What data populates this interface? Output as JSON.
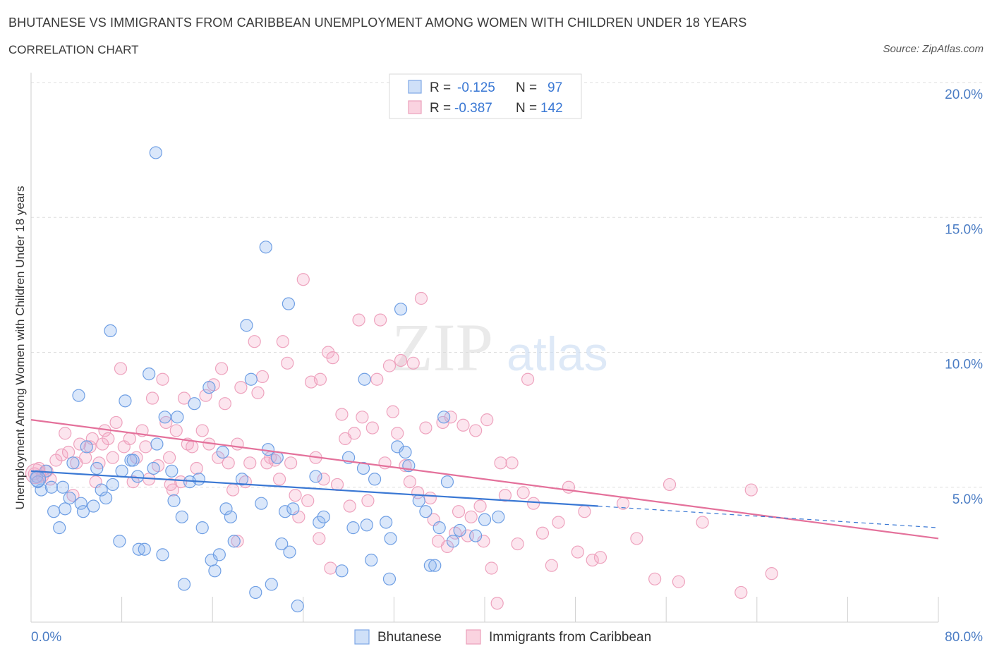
{
  "title": "BHUTANESE VS IMMIGRANTS FROM CARIBBEAN UNEMPLOYMENT AMONG WOMEN WITH CHILDREN UNDER 18 YEARS",
  "subtitle": "CORRELATION CHART",
  "source": "Source: ZipAtlas.com",
  "watermark": {
    "zip": "ZIP",
    "atlas": "atlas"
  },
  "colors": {
    "blue": "#6fa0e6",
    "blue_line": "#3a78d4",
    "pink": "#f0a6bf",
    "pink_line": "#e4719b",
    "tick_text": "#4a7cc4"
  },
  "legend_top": [
    {
      "r_label": "R =",
      "r_value": "-0.125",
      "n_label": "N =",
      "n_value": "97",
      "color": "blue"
    },
    {
      "r_label": "R =",
      "r_value": "-0.387",
      "n_label": "N =",
      "n_value": "142",
      "color": "pink"
    }
  ],
  "legend_bottom": [
    {
      "label": "Bhutanese",
      "color": "blue"
    },
    {
      "label": "Immigrants from Caribbean",
      "color": "pink"
    }
  ],
  "chart_data": {
    "type": "scatter",
    "ylabel": "Unemployment Among Women with Children Under 18 years",
    "xlim": [
      0,
      80
    ],
    "ylim": [
      0,
      20
    ],
    "x_tick_labels": [
      {
        "value": 0,
        "label": "0.0%"
      },
      {
        "value": 80,
        "label": "80.0%"
      }
    ],
    "y_tick_labels": [
      {
        "value": 5,
        "label": "5.0%"
      },
      {
        "value": 10,
        "label": "10.0%"
      },
      {
        "value": 15,
        "label": "15.0%"
      },
      {
        "value": 20,
        "label": "20.0%"
      }
    ],
    "series": [
      {
        "name": "Bhutanese",
        "color": "blue",
        "trend": {
          "x0": 0,
          "y0": 5.6,
          "x1": 50,
          "y1": 4.3,
          "dash_to_x": 80,
          "dash_to_y": 3.5
        },
        "points": [
          [
            0.5,
            5.4
          ],
          [
            0.9,
            4.9
          ],
          [
            1.3,
            5.6
          ],
          [
            1.8,
            5.0
          ],
          [
            0.6,
            5.2
          ],
          [
            2.0,
            4.1
          ],
          [
            2.5,
            3.5
          ],
          [
            2.8,
            5.0
          ],
          [
            3.0,
            4.2
          ],
          [
            3.4,
            4.6
          ],
          [
            3.7,
            5.9
          ],
          [
            4.2,
            8.4
          ],
          [
            4.4,
            4.4
          ],
          [
            4.6,
            4.1
          ],
          [
            4.9,
            6.5
          ],
          [
            5.5,
            4.3
          ],
          [
            5.8,
            5.7
          ],
          [
            6.2,
            4.9
          ],
          [
            6.6,
            4.6
          ],
          [
            7.0,
            10.8
          ],
          [
            7.2,
            5.1
          ],
          [
            7.8,
            3.0
          ],
          [
            8.3,
            8.2
          ],
          [
            8.8,
            6.0
          ],
          [
            9.0,
            6.0
          ],
          [
            9.4,
            5.4
          ],
          [
            9.5,
            2.7
          ],
          [
            10.0,
            2.7
          ],
          [
            10.4,
            9.2
          ],
          [
            10.8,
            5.7
          ],
          [
            11.1,
            6.6
          ],
          [
            11.0,
            17.4
          ],
          [
            11.6,
            2.5
          ],
          [
            11.8,
            7.6
          ],
          [
            12.4,
            5.6
          ],
          [
            12.6,
            4.5
          ],
          [
            12.9,
            7.6
          ],
          [
            13.3,
            3.9
          ],
          [
            13.5,
            1.4
          ],
          [
            14.0,
            5.2
          ],
          [
            14.4,
            8.1
          ],
          [
            14.8,
            5.3
          ],
          [
            15.1,
            3.5
          ],
          [
            15.7,
            8.7
          ],
          [
            15.9,
            2.3
          ],
          [
            16.2,
            1.9
          ],
          [
            16.6,
            2.5
          ],
          [
            16.9,
            6.3
          ],
          [
            17.2,
            4.2
          ],
          [
            17.6,
            3.9
          ],
          [
            17.9,
            3.0
          ],
          [
            18.6,
            5.3
          ],
          [
            19.0,
            11.0
          ],
          [
            19.4,
            9.0
          ],
          [
            19.8,
            1.1
          ],
          [
            20.3,
            4.4
          ],
          [
            20.7,
            13.9
          ],
          [
            20.9,
            6.4
          ],
          [
            21.2,
            1.4
          ],
          [
            21.7,
            6.1
          ],
          [
            22.1,
            2.9
          ],
          [
            22.4,
            4.1
          ],
          [
            22.7,
            11.8
          ],
          [
            22.8,
            2.6
          ],
          [
            23.1,
            4.2
          ],
          [
            23.5,
            0.6
          ],
          [
            25.1,
            5.4
          ],
          [
            25.4,
            3.7
          ],
          [
            25.8,
            3.9
          ],
          [
            27.4,
            1.9
          ],
          [
            28.0,
            6.1
          ],
          [
            28.4,
            3.5
          ],
          [
            29.3,
            5.7
          ],
          [
            29.6,
            3.6
          ],
          [
            30.0,
            2.3
          ],
          [
            30.3,
            5.3
          ],
          [
            31.3,
            3.7
          ],
          [
            31.6,
            1.6
          ],
          [
            32.3,
            6.5
          ],
          [
            32.6,
            11.6
          ],
          [
            33.0,
            6.3
          ],
          [
            33.3,
            5.8
          ],
          [
            34.2,
            4.5
          ],
          [
            34.8,
            4.1
          ],
          [
            35.2,
            2.1
          ],
          [
            35.6,
            2.1
          ],
          [
            36.0,
            3.5
          ],
          [
            36.4,
            7.6
          ],
          [
            36.7,
            5.2
          ],
          [
            37.2,
            3.0
          ],
          [
            37.8,
            3.4
          ],
          [
            39.2,
            3.2
          ],
          [
            40.0,
            3.8
          ],
          [
            41.2,
            3.9
          ],
          [
            31.7,
            3.1
          ],
          [
            29.4,
            9.0
          ],
          [
            8.0,
            5.6
          ]
        ]
      },
      {
        "name": "Immigrants from Caribbean",
        "color": "pink",
        "trend": {
          "x0": 0,
          "y0": 7.5,
          "x1": 80,
          "y1": 3.1
        },
        "points": [
          [
            0.3,
            5.5
          ],
          [
            0.7,
            5.7
          ],
          [
            1.0,
            5.4
          ],
          [
            1.4,
            5.6
          ],
          [
            1.7,
            5.3
          ],
          [
            2.2,
            6.0
          ],
          [
            2.7,
            6.2
          ],
          [
            3.0,
            7.0
          ],
          [
            3.3,
            6.3
          ],
          [
            3.7,
            4.7
          ],
          [
            4.0,
            5.9
          ],
          [
            4.3,
            6.6
          ],
          [
            4.8,
            6.1
          ],
          [
            5.2,
            6.5
          ],
          [
            5.4,
            6.8
          ],
          [
            5.7,
            5.2
          ],
          [
            6.0,
            5.9
          ],
          [
            6.3,
            6.6
          ],
          [
            6.5,
            7.1
          ],
          [
            6.8,
            6.8
          ],
          [
            7.2,
            6.1
          ],
          [
            7.5,
            7.4
          ],
          [
            7.9,
            9.4
          ],
          [
            8.2,
            6.5
          ],
          [
            8.7,
            6.8
          ],
          [
            9.0,
            5.2
          ],
          [
            9.3,
            6.1
          ],
          [
            9.8,
            7.1
          ],
          [
            10.1,
            6.5
          ],
          [
            10.4,
            5.3
          ],
          [
            10.7,
            8.3
          ],
          [
            11.2,
            5.8
          ],
          [
            11.6,
            9.0
          ],
          [
            11.9,
            7.4
          ],
          [
            12.2,
            6.1
          ],
          [
            12.5,
            4.9
          ],
          [
            12.8,
            7.1
          ],
          [
            13.2,
            5.2
          ],
          [
            13.5,
            8.3
          ],
          [
            13.8,
            6.6
          ],
          [
            14.2,
            6.5
          ],
          [
            14.6,
            5.7
          ],
          [
            15.1,
            7.1
          ],
          [
            15.4,
            8.4
          ],
          [
            15.7,
            6.6
          ],
          [
            16.1,
            8.8
          ],
          [
            16.5,
            6.1
          ],
          [
            16.8,
            9.4
          ],
          [
            17.1,
            8.1
          ],
          [
            17.4,
            5.9
          ],
          [
            17.8,
            4.9
          ],
          [
            18.2,
            6.6
          ],
          [
            18.5,
            8.7
          ],
          [
            18.9,
            5.2
          ],
          [
            19.3,
            5.9
          ],
          [
            19.7,
            10.4
          ],
          [
            20.0,
            8.5
          ],
          [
            20.4,
            9.1
          ],
          [
            20.8,
            5.9
          ],
          [
            21.1,
            6.1
          ],
          [
            21.5,
            6.0
          ],
          [
            21.9,
            5.3
          ],
          [
            22.2,
            10.4
          ],
          [
            22.6,
            9.6
          ],
          [
            22.9,
            5.9
          ],
          [
            23.3,
            4.7
          ],
          [
            23.6,
            3.9
          ],
          [
            24.0,
            12.7
          ],
          [
            24.4,
            4.5
          ],
          [
            24.7,
            8.9
          ],
          [
            25.1,
            6.1
          ],
          [
            25.5,
            9.0
          ],
          [
            25.8,
            5.3
          ],
          [
            26.2,
            10.0
          ],
          [
            26.6,
            9.8
          ],
          [
            27.0,
            5.1
          ],
          [
            27.4,
            7.7
          ],
          [
            27.7,
            6.8
          ],
          [
            28.1,
            4.3
          ],
          [
            28.5,
            7.0
          ],
          [
            28.9,
            11.2
          ],
          [
            29.2,
            7.6
          ],
          [
            29.7,
            4.5
          ],
          [
            30.1,
            7.2
          ],
          [
            30.5,
            9.0
          ],
          [
            30.8,
            11.2
          ],
          [
            31.2,
            5.9
          ],
          [
            31.6,
            9.5
          ],
          [
            31.9,
            7.8
          ],
          [
            32.3,
            7.0
          ],
          [
            32.6,
            9.7
          ],
          [
            33.0,
            5.8
          ],
          [
            33.4,
            5.2
          ],
          [
            33.7,
            9.6
          ],
          [
            34.1,
            4.8
          ],
          [
            34.4,
            12.0
          ],
          [
            34.8,
            7.2
          ],
          [
            35.2,
            4.6
          ],
          [
            35.5,
            3.8
          ],
          [
            35.9,
            3.0
          ],
          [
            36.3,
            7.4
          ],
          [
            36.7,
            2.8
          ],
          [
            37.0,
            7.6
          ],
          [
            37.4,
            3.3
          ],
          [
            37.7,
            4.1
          ],
          [
            38.1,
            7.3
          ],
          [
            38.5,
            3.2
          ],
          [
            38.8,
            3.9
          ],
          [
            39.2,
            7.1
          ],
          [
            39.6,
            4.3
          ],
          [
            39.9,
            3.0
          ],
          [
            40.2,
            7.5
          ],
          [
            40.6,
            2.0
          ],
          [
            41.1,
            0.7
          ],
          [
            41.4,
            5.9
          ],
          [
            41.8,
            4.7
          ],
          [
            42.4,
            5.9
          ],
          [
            42.9,
            2.9
          ],
          [
            43.4,
            4.8
          ],
          [
            43.8,
            9.0
          ],
          [
            44.3,
            4.4
          ],
          [
            45.1,
            3.3
          ],
          [
            45.9,
            2.1
          ],
          [
            46.5,
            3.7
          ],
          [
            47.4,
            5.0
          ],
          [
            48.2,
            2.6
          ],
          [
            48.8,
            4.1
          ],
          [
            49.5,
            2.3
          ],
          [
            50.2,
            2.4
          ],
          [
            52.2,
            4.4
          ],
          [
            53.4,
            3.1
          ],
          [
            55.0,
            1.6
          ],
          [
            56.3,
            5.1
          ],
          [
            57.1,
            1.5
          ],
          [
            59.2,
            3.7
          ],
          [
            62.6,
            1.1
          ],
          [
            63.5,
            4.9
          ],
          [
            65.3,
            1.8
          ],
          [
            26.4,
            2.0
          ],
          [
            25.4,
            3.1
          ],
          [
            18.2,
            3.0
          ],
          [
            12.3,
            5.1
          ]
        ]
      }
    ]
  }
}
